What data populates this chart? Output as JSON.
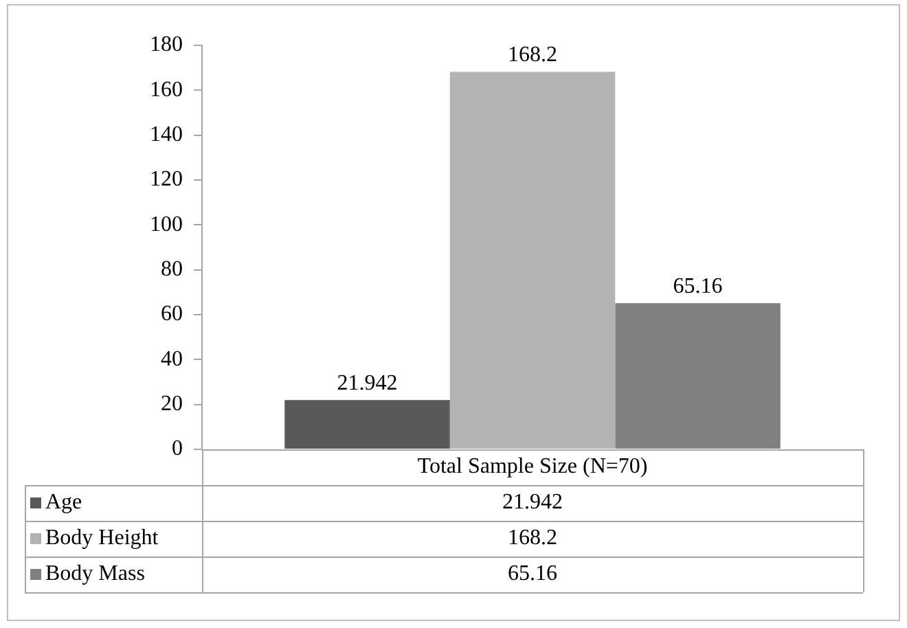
{
  "chart_data": {
    "type": "bar",
    "categories": [
      "Total Sample Size (N=70)"
    ],
    "series": [
      {
        "name": "Age",
        "color": "#595959",
        "values": [
          21.942
        ],
        "value_labels": [
          "21.942"
        ]
      },
      {
        "name": "Body Height",
        "color": "#b3b3b3",
        "values": [
          168.2
        ],
        "value_labels": [
          "168.2"
        ]
      },
      {
        "name": "Body Mass",
        "color": "#808080",
        "values": [
          65.16
        ],
        "value_labels": [
          "65.16"
        ]
      }
    ],
    "ylim": [
      0,
      180
    ],
    "yticks": [
      0,
      20,
      40,
      60,
      80,
      100,
      120,
      140,
      160,
      180
    ],
    "grid": false,
    "legend": "bottom",
    "data_labels": true
  }
}
